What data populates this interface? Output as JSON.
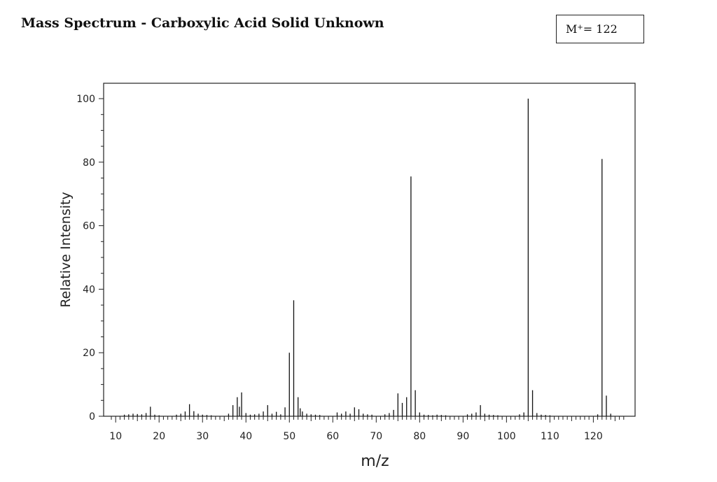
{
  "page_title": "Mass Spectrum - Carboxylic Acid Solid Unknown",
  "molecular_ion": {
    "label": "M",
    "sup": "+",
    "value_text": " = 122"
  },
  "chart_data": {
    "type": "bar",
    "title": "Mass Spectrum - Carboxylic Acid Solid Unknown",
    "xlabel": "m/z",
    "ylabel": "Relative Intensity",
    "xlim": [
      9,
      128
    ],
    "ylim": [
      0,
      105
    ],
    "x_ticks": [
      10,
      20,
      30,
      40,
      50,
      60,
      70,
      80,
      90,
      100,
      110,
      120
    ],
    "y_ticks": [
      0,
      20,
      40,
      60,
      80,
      100
    ],
    "grid": false,
    "x": [
      12,
      13,
      14,
      15,
      16,
      17,
      18,
      19,
      20,
      24,
      25,
      26,
      27,
      28,
      29,
      30,
      31,
      32,
      36,
      37,
      38,
      38.5,
      39,
      40,
      41,
      42,
      43,
      44,
      45,
      46,
      47,
      48,
      49,
      50,
      51,
      52,
      52.5,
      53,
      54,
      55,
      56,
      57,
      61,
      62,
      63,
      64,
      65,
      66,
      67,
      68,
      69,
      72,
      73,
      74,
      75,
      76,
      77,
      78,
      79,
      80,
      81,
      82,
      83,
      84,
      85,
      86,
      91,
      92,
      93,
      94,
      95,
      96,
      97,
      98,
      103,
      104,
      105,
      106,
      107,
      108,
      109,
      110,
      121,
      122,
      123,
      124
    ],
    "values": [
      0.5,
      0.6,
      0.8,
      0.7,
      0.6,
      1.0,
      3.0,
      0.5,
      0.3,
      0.5,
      0.8,
      1.5,
      3.8,
      1.6,
      0.8,
      0.5,
      0.4,
      0.3,
      0.8,
      3.5,
      6.0,
      3.0,
      7.5,
      1.0,
      0.5,
      0.6,
      0.8,
      1.5,
      3.5,
      0.8,
      1.4,
      0.6,
      2.8,
      20.0,
      36.5,
      6.0,
      2.5,
      1.5,
      0.8,
      0.6,
      0.5,
      0.4,
      1.2,
      0.8,
      1.5,
      0.8,
      2.8,
      2.2,
      0.8,
      0.6,
      0.5,
      0.6,
      1.0,
      2.0,
      7.2,
      4.2,
      6.0,
      75.5,
      8.2,
      1.2,
      0.5,
      0.4,
      0.3,
      0.5,
      0.4,
      0.3,
      0.6,
      0.8,
      1.2,
      3.5,
      0.8,
      0.5,
      0.4,
      0.3,
      0.6,
      1.2,
      100.0,
      8.2,
      1.0,
      0.5,
      0.4,
      0.3,
      0.6,
      81.0,
      6.5,
      0.8
    ]
  }
}
